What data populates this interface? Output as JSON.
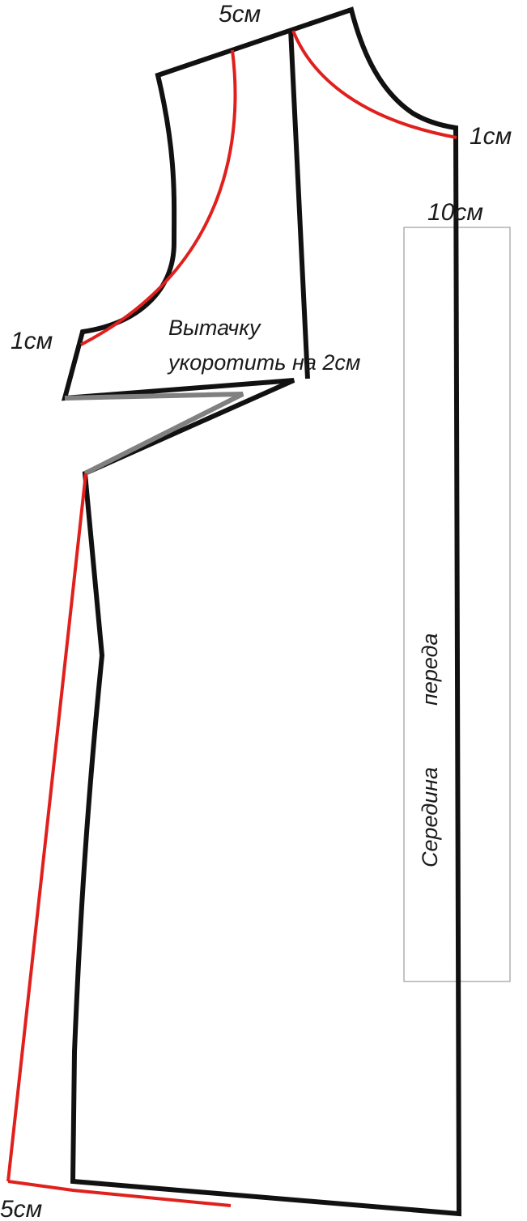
{
  "labels": {
    "top_shoulder": "5см",
    "neck_point": "1см",
    "front_width": "10см",
    "armhole_point": "1см",
    "dart_note_line1": "Вытачку",
    "dart_note_line2": "укоротить на 2см",
    "center_front_word1": "Середина",
    "center_front_word2": "переда",
    "hem": "5см"
  },
  "colors": {
    "outline": "#111111",
    "modified": "#e0201c",
    "dart": "#808080",
    "frame": "#8a8a8a"
  }
}
